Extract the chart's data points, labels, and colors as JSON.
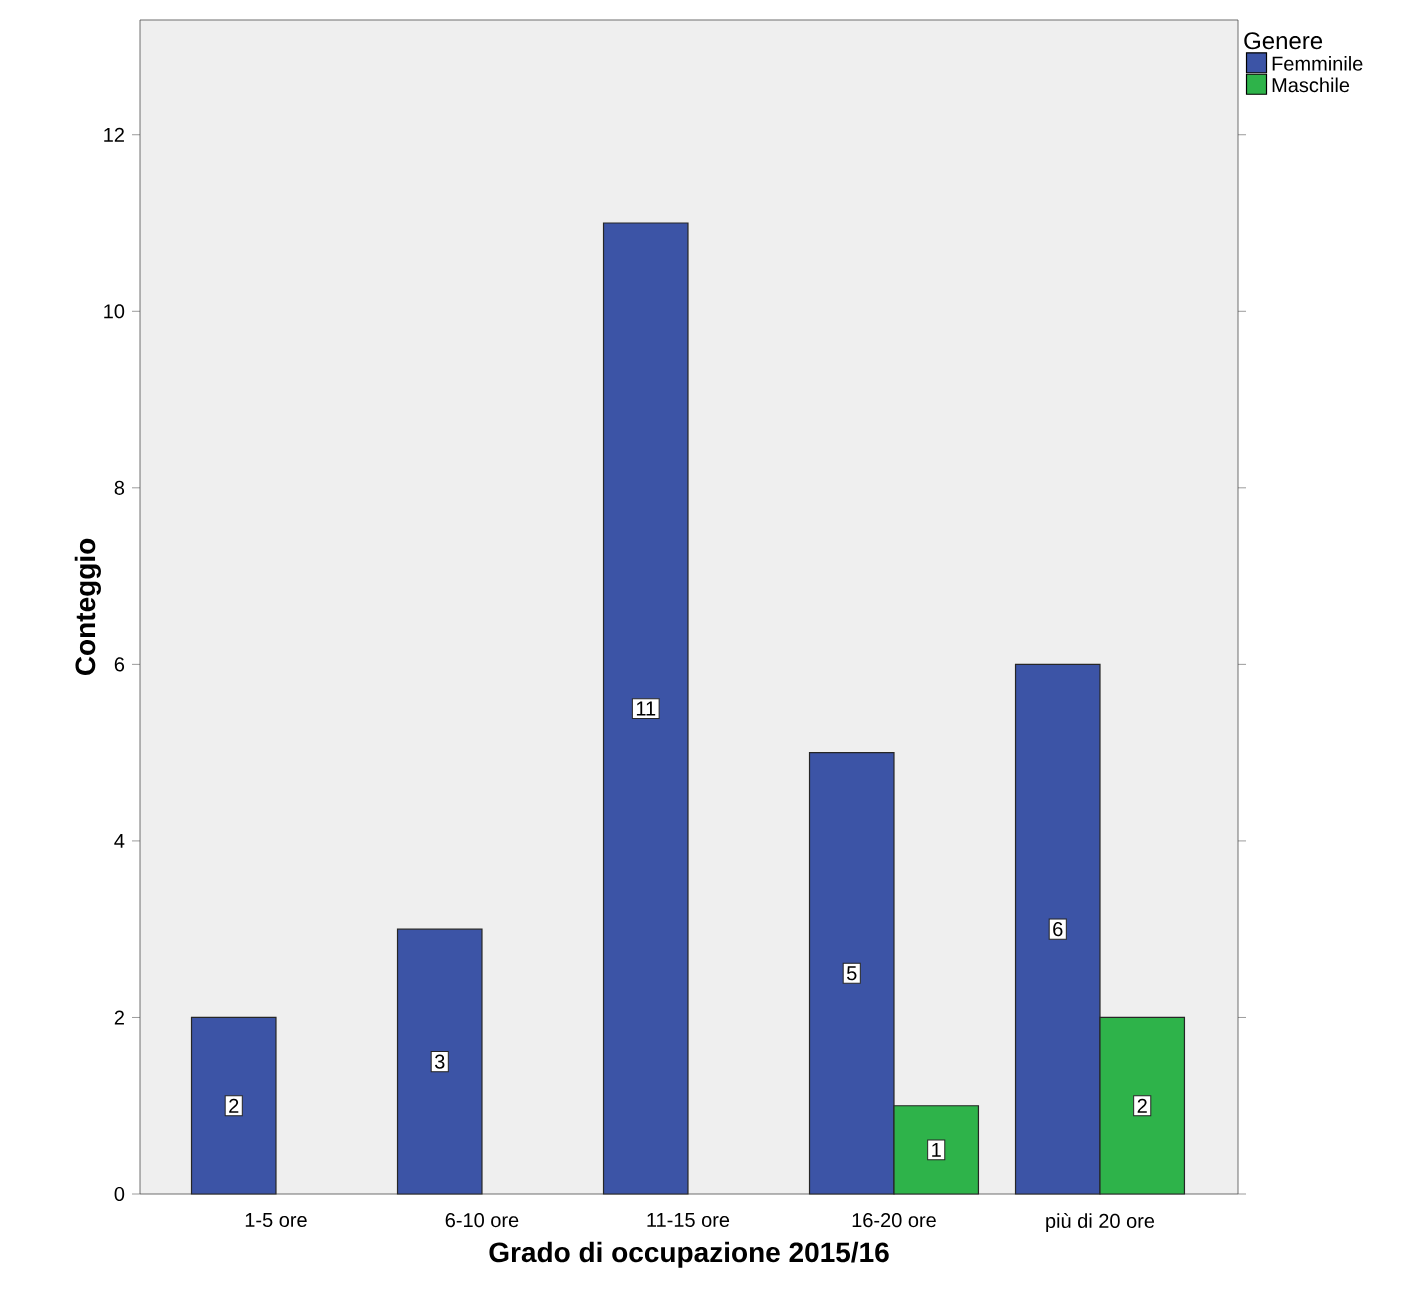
{
  "chart_data": {
    "type": "bar",
    "xlabel": "Grado di occupazione 2015/16",
    "ylabel": "Conteggio",
    "legend_title": "Genere",
    "categories": [
      "1-5 ore",
      "6-10 ore",
      "11-15 ore",
      "16-20 ore",
      "più di 20 ore"
    ],
    "series": [
      {
        "name": "Femminile",
        "color": "#3c54a6",
        "values": [
          2,
          3,
          11,
          5,
          6
        ]
      },
      {
        "name": "Maschile",
        "color": "#2eb34a",
        "values": [
          null,
          null,
          null,
          1,
          2
        ]
      }
    ],
    "ylim": [
      0,
      13.3
    ],
    "yticks": [
      0,
      2,
      4,
      6,
      8,
      10,
      12
    ],
    "grid": false,
    "legend": "top right",
    "data_labels": true
  }
}
